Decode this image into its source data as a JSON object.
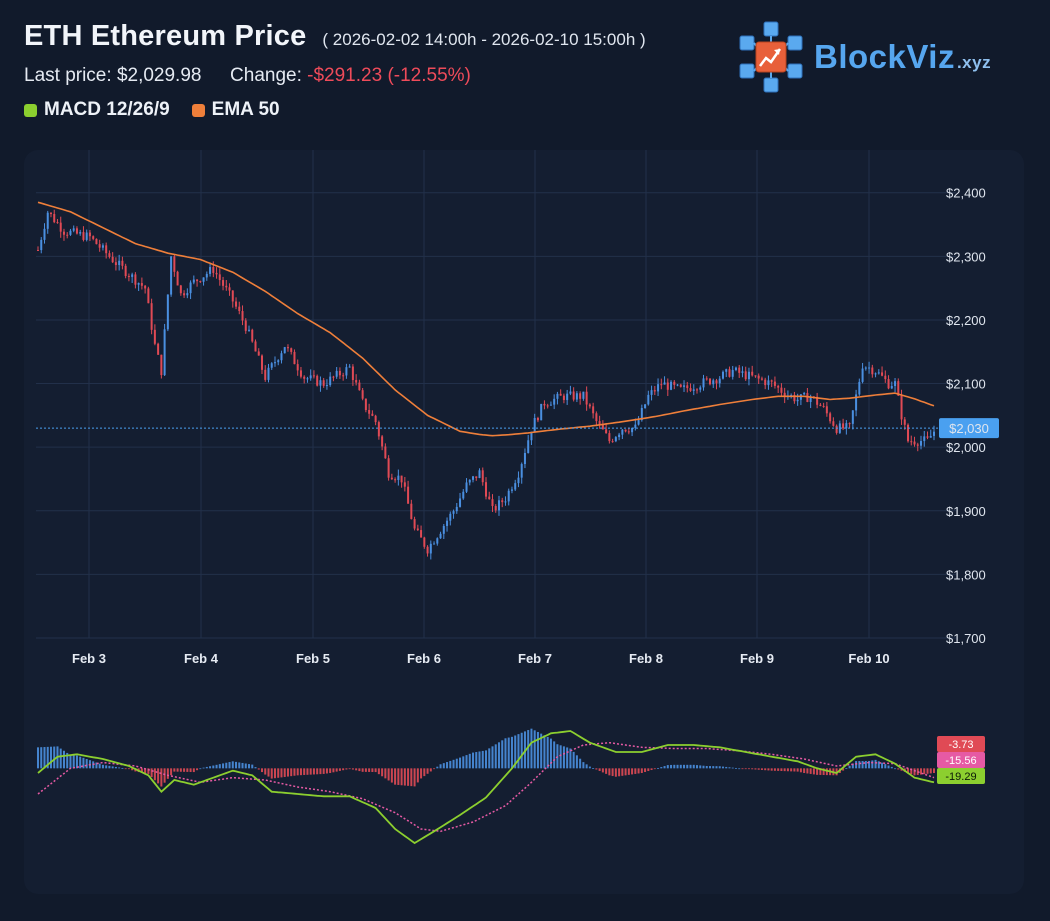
{
  "header": {
    "title": "ETH Ethereum Price",
    "range": "( 2026-02-02 14:00h - 2026-02-10 15:00h )",
    "last_price_label": "Last price:",
    "last_price": "$2,029.98",
    "change_label": "Change:",
    "change_value": "-$291.23 (-12.55%)"
  },
  "legend": [
    {
      "name": "MACD 12/26/9",
      "color": "#8ccf2f"
    },
    {
      "name": "EMA 50",
      "color": "#ef7f3a"
    }
  ],
  "brand": {
    "name": "BlockViz",
    "suffix": ".xyz",
    "logo_icon": "blockchain-cubes-chart-icon"
  },
  "colors": {
    "background": "#111a2b",
    "panel": "#141e31",
    "up": "#4a8fe0",
    "down": "#e04a55",
    "ema": "#ef7f3a",
    "macd": "#8ccf2f",
    "signal": "#e65aa4",
    "negative_text": "#ef4b5a",
    "last_price_line": "#4aa0f0"
  },
  "chart_data": [
    {
      "type": "candlestick",
      "x_range": [
        "2026-02-02 14:00",
        "2026-02-10 15:00"
      ],
      "x_ticks": [
        "Feb 3",
        "Feb 4",
        "Feb 5",
        "Feb 6",
        "Feb 7",
        "Feb 8",
        "Feb 9",
        "Feb 10"
      ],
      "y_ticks": [
        "$2,400",
        "$2,300",
        "$2,200",
        "$2,100",
        "$2,000",
        "$1,900",
        "$1,800",
        "$1,700"
      ],
      "ylim": [
        1700,
        2420
      ],
      "grid": true,
      "last_price_tag": "$2,030",
      "last_price": 2029.98,
      "price_anchors": [
        [
          0,
          2310
        ],
        [
          3,
          2370
        ],
        [
          8,
          2340
        ],
        [
          16,
          2330
        ],
        [
          24,
          2290
        ],
        [
          33,
          2250
        ],
        [
          36,
          2160
        ],
        [
          38,
          2120
        ],
        [
          41,
          2300
        ],
        [
          44,
          2240
        ],
        [
          48,
          2260
        ],
        [
          54,
          2280
        ],
        [
          60,
          2230
        ],
        [
          64,
          2190
        ],
        [
          70,
          2110
        ],
        [
          76,
          2160
        ],
        [
          82,
          2110
        ],
        [
          88,
          2100
        ],
        [
          96,
          2125
        ],
        [
          100,
          2070
        ],
        [
          104,
          2040
        ],
        [
          108,
          1960
        ],
        [
          112,
          1950
        ],
        [
          116,
          1870
        ],
        [
          120,
          1840
        ],
        [
          124,
          1870
        ],
        [
          128,
          1900
        ],
        [
          132,
          1940
        ],
        [
          136,
          1960
        ],
        [
          140,
          1900
        ],
        [
          144,
          1920
        ],
        [
          148,
          1960
        ],
        [
          152,
          2030
        ],
        [
          156,
          2070
        ],
        [
          162,
          2080
        ],
        [
          168,
          2080
        ],
        [
          172,
          2040
        ],
        [
          176,
          2010
        ],
        [
          180,
          2030
        ],
        [
          184,
          2030
        ],
        [
          188,
          2080
        ],
        [
          192,
          2100
        ],
        [
          198,
          2090
        ],
        [
          204,
          2100
        ],
        [
          210,
          2110
        ],
        [
          214,
          2120
        ],
        [
          220,
          2110
        ],
        [
          226,
          2100
        ],
        [
          230,
          2085
        ],
        [
          234,
          2075
        ],
        [
          238,
          2080
        ],
        [
          242,
          2060
        ],
        [
          246,
          2030
        ],
        [
          250,
          2030
        ],
        [
          254,
          2130
        ],
        [
          258,
          2120
        ],
        [
          262,
          2100
        ],
        [
          264,
          2100
        ],
        [
          266,
          2050
        ],
        [
          268,
          2010
        ],
        [
          274,
          2010
        ],
        [
          276,
          2025
        ]
      ],
      "ema_anchors": [
        [
          0,
          2385
        ],
        [
          10,
          2370
        ],
        [
          20,
          2345
        ],
        [
          30,
          2320
        ],
        [
          40,
          2305
        ],
        [
          50,
          2295
        ],
        [
          60,
          2275
        ],
        [
          70,
          2245
        ],
        [
          80,
          2210
        ],
        [
          90,
          2180
        ],
        [
          100,
          2140
        ],
        [
          110,
          2090
        ],
        [
          120,
          2050
        ],
        [
          130,
          2025
        ],
        [
          136,
          2020
        ],
        [
          140,
          2018
        ],
        [
          146,
          2020
        ],
        [
          152,
          2023
        ],
        [
          160,
          2028
        ],
        [
          170,
          2033
        ],
        [
          180,
          2040
        ],
        [
          190,
          2048
        ],
        [
          200,
          2058
        ],
        [
          210,
          2067
        ],
        [
          220,
          2075
        ],
        [
          228,
          2080
        ],
        [
          236,
          2080
        ],
        [
          244,
          2075
        ],
        [
          250,
          2077
        ],
        [
          258,
          2082
        ],
        [
          264,
          2085
        ],
        [
          270,
          2076
        ],
        [
          276,
          2065
        ]
      ]
    },
    {
      "type": "macd",
      "name": "MACD 12/26/9",
      "last_values": {
        "histogram": -3.73,
        "signal": -15.56,
        "macd": -19.29
      },
      "labels": [
        "-3.73",
        "-15.56",
        "-19.29"
      ],
      "ylim": [
        -70,
        50
      ],
      "macd_anchors": [
        [
          0,
          -4
        ],
        [
          6,
          10
        ],
        [
          12,
          12
        ],
        [
          20,
          8
        ],
        [
          28,
          2
        ],
        [
          34,
          -6
        ],
        [
          38,
          -20
        ],
        [
          42,
          -10
        ],
        [
          48,
          -14
        ],
        [
          54,
          -8
        ],
        [
          60,
          -2
        ],
        [
          66,
          -6
        ],
        [
          72,
          -20
        ],
        [
          80,
          -22
        ],
        [
          88,
          -24
        ],
        [
          96,
          -24
        ],
        [
          104,
          -34
        ],
        [
          110,
          -52
        ],
        [
          116,
          -64
        ],
        [
          122,
          -54
        ],
        [
          130,
          -40
        ],
        [
          138,
          -25
        ],
        [
          146,
          0
        ],
        [
          152,
          22
        ],
        [
          158,
          30
        ],
        [
          164,
          32
        ],
        [
          170,
          22
        ],
        [
          178,
          14
        ],
        [
          186,
          14
        ],
        [
          194,
          20
        ],
        [
          202,
          20
        ],
        [
          210,
          18
        ],
        [
          218,
          14
        ],
        [
          226,
          10
        ],
        [
          234,
          6
        ],
        [
          240,
          0
        ],
        [
          246,
          -4
        ],
        [
          252,
          10
        ],
        [
          258,
          12
        ],
        [
          264,
          4
        ],
        [
          270,
          -8
        ],
        [
          276,
          -12
        ]
      ],
      "signal_anchors": [
        [
          0,
          -22
        ],
        [
          10,
          0
        ],
        [
          20,
          5
        ],
        [
          30,
          2
        ],
        [
          40,
          -6
        ],
        [
          50,
          -12
        ],
        [
          60,
          -8
        ],
        [
          70,
          -10
        ],
        [
          80,
          -16
        ],
        [
          90,
          -20
        ],
        [
          100,
          -26
        ],
        [
          110,
          -38
        ],
        [
          118,
          -52
        ],
        [
          124,
          -54
        ],
        [
          134,
          -46
        ],
        [
          144,
          -32
        ],
        [
          152,
          -12
        ],
        [
          160,
          10
        ],
        [
          168,
          20
        ],
        [
          176,
          22
        ],
        [
          186,
          18
        ],
        [
          196,
          17
        ],
        [
          206,
          17
        ],
        [
          216,
          15
        ],
        [
          226,
          12
        ],
        [
          236,
          8
        ],
        [
          246,
          2
        ],
        [
          256,
          5
        ],
        [
          264,
          4
        ],
        [
          270,
          -2
        ],
        [
          276,
          -8
        ]
      ]
    }
  ]
}
